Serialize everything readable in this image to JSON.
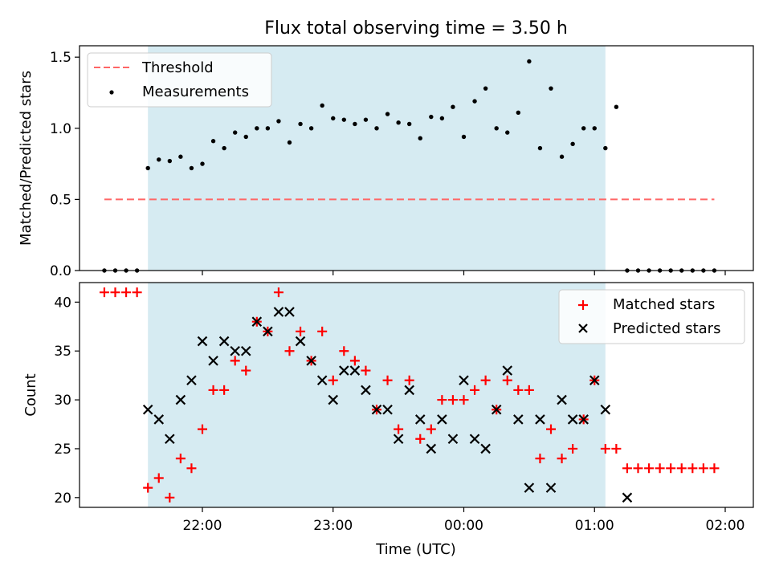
{
  "colors": {
    "window": "#add8e6",
    "threshold": "#ff6666",
    "matched": "#ff0000",
    "predicted": "#000000",
    "measurement": "#000000"
  },
  "chart_data": [
    {
      "type": "scatter",
      "title": "Flux total observing time = 3.50 h",
      "ylabel": "Matched/Predicted stars",
      "xlabel": "",
      "ylim": [
        0,
        1.58
      ],
      "yticks": [
        0.0,
        0.5,
        1.0,
        1.5
      ],
      "ytick_labels": [
        "0.0",
        "0.5",
        "1.0",
        "1.5"
      ],
      "grid": false,
      "legend": "top-left",
      "observing_window": [
        "21:35",
        "01:05"
      ],
      "threshold": {
        "name": "Threshold",
        "value": 0.5,
        "x_range": [
          "21:15",
          "01:55"
        ]
      },
      "series": [
        {
          "name": "Measurements",
          "x": [
            "21:15",
            "21:20",
            "21:25",
            "21:30",
            "21:35",
            "21:40",
            "21:45",
            "21:50",
            "21:55",
            "22:00",
            "22:05",
            "22:10",
            "22:15",
            "22:20",
            "22:25",
            "22:30",
            "22:35",
            "22:40",
            "22:45",
            "22:50",
            "22:55",
            "23:00",
            "23:05",
            "23:10",
            "23:15",
            "23:20",
            "23:25",
            "23:30",
            "23:35",
            "23:40",
            "23:45",
            "23:50",
            "23:55",
            "00:00",
            "00:05",
            "00:10",
            "00:15",
            "00:20",
            "00:25",
            "00:30",
            "00:35",
            "00:40",
            "00:45",
            "00:50",
            "00:55",
            "01:00",
            "01:05",
            "01:10",
            "01:15",
            "01:20",
            "01:25",
            "01:30",
            "01:35",
            "01:40",
            "01:45",
            "01:50",
            "01:55"
          ],
          "y": [
            0,
            0,
            0,
            0,
            0.72,
            0.78,
            0.77,
            0.8,
            0.72,
            0.75,
            0.91,
            0.86,
            0.97,
            0.94,
            1.0,
            1.0,
            1.05,
            0.9,
            1.03,
            1.0,
            1.16,
            1.07,
            1.06,
            1.03,
            1.06,
            1.0,
            1.1,
            1.04,
            1.03,
            0.93,
            1.08,
            1.07,
            1.15,
            0.94,
            1.19,
            1.28,
            1.0,
            0.97,
            1.11,
            1.47,
            0.86,
            1.28,
            0.8,
            0.89,
            1.0,
            1.0,
            0.86,
            1.15,
            0,
            0,
            0,
            0,
            0,
            0,
            0,
            0,
            0
          ]
        }
      ]
    },
    {
      "type": "scatter",
      "title": "",
      "xlabel": "Time (UTC)",
      "ylabel": "Count",
      "ylim": [
        19,
        42
      ],
      "yticks": [
        20,
        25,
        30,
        35,
        40
      ],
      "ytick_labels": [
        "20",
        "25",
        "30",
        "35",
        "40"
      ],
      "xticks": [
        "22:00",
        "23:00",
        "00:00",
        "01:00",
        "02:00"
      ],
      "grid": false,
      "legend": "top-right",
      "observing_window": [
        "21:35",
        "01:05"
      ],
      "series": [
        {
          "name": "Matched stars",
          "x": [
            "21:15",
            "21:20",
            "21:25",
            "21:30",
            "21:35",
            "21:40",
            "21:45",
            "21:50",
            "21:55",
            "22:00",
            "22:05",
            "22:10",
            "22:15",
            "22:20",
            "22:25",
            "22:30",
            "22:35",
            "22:40",
            "22:45",
            "22:50",
            "22:55",
            "23:00",
            "23:05",
            "23:10",
            "23:15",
            "23:20",
            "23:25",
            "23:30",
            "23:35",
            "23:40",
            "23:45",
            "23:50",
            "23:55",
            "00:00",
            "00:05",
            "00:10",
            "00:15",
            "00:20",
            "00:25",
            "00:30",
            "00:35",
            "00:40",
            "00:45",
            "00:50",
            "00:55",
            "01:00",
            "01:05",
            "01:10",
            "01:15",
            "01:20",
            "01:25",
            "01:30",
            "01:35",
            "01:40",
            "01:45",
            "01:50",
            "01:55"
          ],
          "y": [
            41,
            41,
            41,
            41,
            21,
            22,
            20,
            24,
            23,
            27,
            31,
            31,
            34,
            33,
            38,
            37,
            41,
            35,
            37,
            34,
            37,
            32,
            35,
            34,
            33,
            29,
            32,
            27,
            32,
            26,
            27,
            30,
            30,
            30,
            31,
            32,
            29,
            32,
            31,
            31,
            24,
            27,
            24,
            25,
            28,
            32,
            25,
            25,
            23,
            23,
            23,
            23,
            23,
            23,
            23,
            23,
            23
          ]
        },
        {
          "name": "Predicted stars",
          "x": [
            "21:35",
            "21:40",
            "21:45",
            "21:50",
            "21:55",
            "22:00",
            "22:05",
            "22:10",
            "22:15",
            "22:20",
            "22:25",
            "22:30",
            "22:35",
            "22:40",
            "22:45",
            "22:50",
            "22:55",
            "23:00",
            "23:05",
            "23:10",
            "23:15",
            "23:20",
            "23:25",
            "23:30",
            "23:35",
            "23:40",
            "23:45",
            "23:50",
            "23:55",
            "00:00",
            "00:05",
            "00:10",
            "00:15",
            "00:20",
            "00:25",
            "00:30",
            "00:35",
            "00:40",
            "00:45",
            "00:50",
            "00:55",
            "01:00",
            "01:05",
            "01:15"
          ],
          "y": [
            29,
            28,
            26,
            30,
            32,
            36,
            34,
            36,
            35,
            35,
            38,
            37,
            39,
            39,
            36,
            34,
            32,
            30,
            33,
            33,
            31,
            29,
            29,
            26,
            31,
            28,
            25,
            28,
            26,
            32,
            26,
            25,
            29,
            33,
            28,
            21,
            28,
            21,
            30,
            28,
            28,
            32,
            29,
            20
          ]
        }
      ]
    }
  ]
}
